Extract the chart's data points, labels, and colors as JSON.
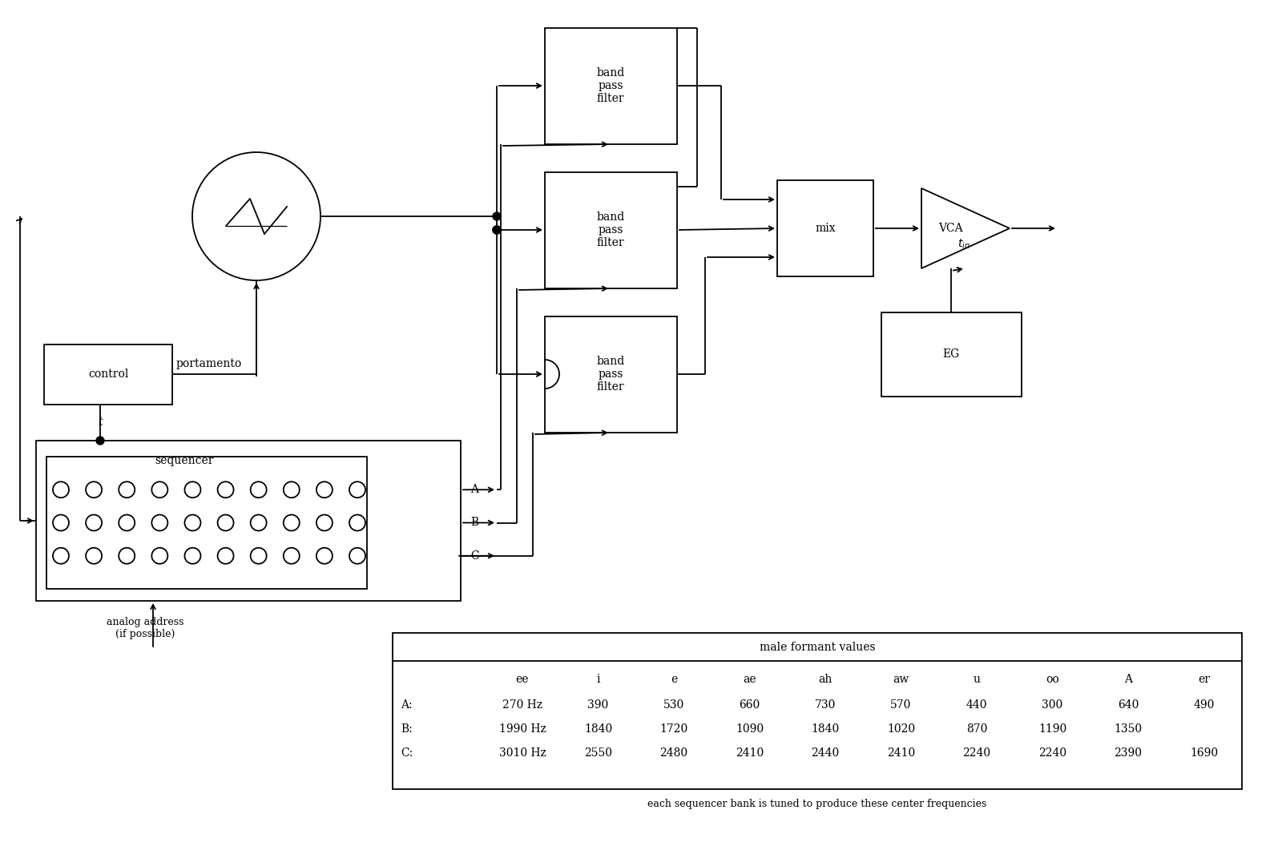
{
  "bg_color": "#ffffff",
  "line_color": "#000000",
  "table_header": "male formant values",
  "table_cols": [
    "ee",
    "i",
    "e",
    "ae",
    "ah",
    "aw",
    "u",
    "oo",
    "A",
    "er"
  ],
  "table_rows": {
    "A:": [
      "270 Hz",
      "390",
      "530",
      "660",
      "730",
      "570",
      "440",
      "300",
      "640",
      "490"
    ],
    "B:": [
      "1990 Hz",
      "1840",
      "1720",
      "1090",
      "1840",
      "1020",
      "870",
      "1190",
      "1350",
      ""
    ],
    "C:": [
      "3010 Hz",
      "2550",
      "2480",
      "2410",
      "2440",
      "2410",
      "2240",
      "2240",
      "2390",
      "1690"
    ]
  },
  "table_caption": "each sequencer bank is tuned to produce these center frequencies"
}
